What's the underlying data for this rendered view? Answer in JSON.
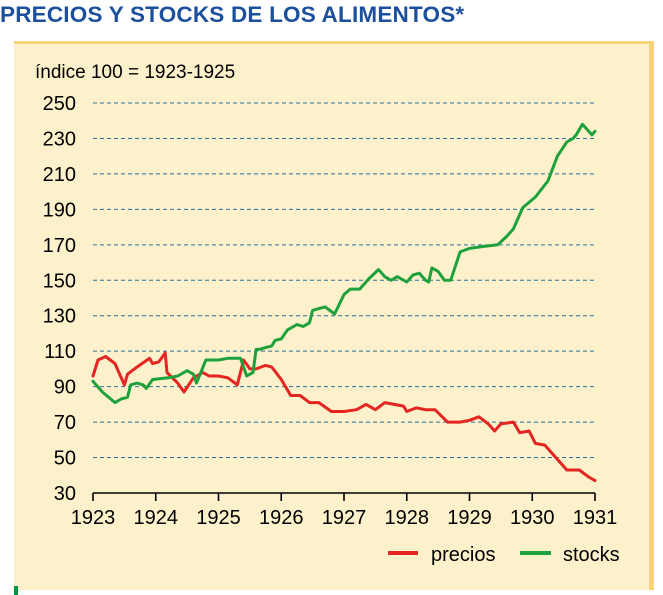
{
  "title": "PRECIOS Y STOCKS DE LOS ALIMENTOS*",
  "colors": {
    "title": "#1c4f9c",
    "panel": "#fdf1cc",
    "border": "#f8d37a",
    "grid": "#2e6f9c",
    "precios": "#e42521",
    "stocks": "#1ea13c"
  },
  "chart_data": {
    "type": "line",
    "subtitle": "índice 100 = 1923-1925",
    "xlim": [
      1923,
      1931
    ],
    "ylim": [
      30,
      250
    ],
    "x_ticks": [
      1923,
      1924,
      1925,
      1926,
      1927,
      1928,
      1929,
      1930,
      1931
    ],
    "y_ticks": [
      30,
      50,
      70,
      90,
      110,
      130,
      150,
      170,
      190,
      210,
      230,
      250
    ],
    "grid": "horizontal dashed",
    "legend_position": "bottom-right",
    "series": [
      {
        "name": "precios",
        "color": "#e42521",
        "x": [
          1923.0,
          1923.08,
          1923.2,
          1923.35,
          1923.5,
          1923.55,
          1923.7,
          1923.9,
          1923.95,
          1924.05,
          1924.15,
          1924.18,
          1924.35,
          1924.45,
          1924.6,
          1924.75,
          1924.85,
          1925.0,
          1925.15,
          1925.3,
          1925.4,
          1925.5,
          1925.6,
          1925.75,
          1925.85,
          1926.0,
          1926.15,
          1926.3,
          1926.45,
          1926.6,
          1926.8,
          1927.0,
          1927.2,
          1927.35,
          1927.5,
          1927.65,
          1927.8,
          1927.95,
          1928.0,
          1928.15,
          1928.3,
          1928.45,
          1928.65,
          1928.85,
          1929.0,
          1929.15,
          1929.3,
          1929.4,
          1929.5,
          1929.7,
          1929.8,
          1929.95,
          1930.05,
          1930.2,
          1930.35,
          1930.55,
          1930.75,
          1930.9,
          1931.0
        ],
        "values": [
          96,
          105,
          107,
          103,
          91,
          97,
          101,
          106,
          103,
          104,
          109,
          98,
          92,
          87,
          95,
          98,
          96,
          96,
          95,
          91,
          105,
          100,
          100,
          102,
          101,
          94,
          85,
          85,
          81,
          81,
          76,
          76,
          77,
          80,
          77,
          81,
          80,
          79,
          76,
          78,
          77,
          77,
          70,
          70,
          71,
          73,
          69,
          65,
          69,
          70,
          64,
          65,
          58,
          57,
          51,
          43,
          43,
          39,
          37
        ]
      },
      {
        "name": "stocks",
        "color": "#1ea13c",
        "x": [
          1923.0,
          1923.15,
          1923.35,
          1923.45,
          1923.55,
          1923.6,
          1923.7,
          1923.8,
          1923.85,
          1923.95,
          1924.2,
          1924.35,
          1924.5,
          1924.6,
          1924.65,
          1924.8,
          1925.0,
          1925.15,
          1925.35,
          1925.45,
          1925.5,
          1925.55,
          1925.6,
          1925.65,
          1925.75,
          1925.85,
          1925.9,
          1926.0,
          1926.1,
          1926.25,
          1926.35,
          1926.45,
          1926.5,
          1926.6,
          1926.7,
          1926.85,
          1927.0,
          1927.1,
          1927.25,
          1927.4,
          1927.55,
          1927.65,
          1927.75,
          1927.85,
          1928.0,
          1928.1,
          1928.2,
          1928.3,
          1928.35,
          1928.4,
          1928.5,
          1928.6,
          1928.7,
          1928.85,
          1929.0,
          1929.2,
          1929.45,
          1929.6,
          1929.7,
          1929.85,
          1930.05,
          1930.25,
          1930.4,
          1930.55,
          1930.65,
          1930.7,
          1930.8,
          1930.85,
          1930.95,
          1931.0
        ],
        "values": [
          93,
          87,
          81,
          83,
          84,
          91,
          92,
          91,
          89,
          94,
          95,
          96,
          99,
          97,
          92,
          105,
          105,
          106,
          106,
          96,
          97,
          98,
          111,
          111,
          112,
          113,
          116,
          117,
          122,
          125,
          124,
          126,
          133,
          134,
          135,
          131,
          142,
          145,
          145,
          151,
          156,
          152,
          150,
          152,
          149,
          153,
          154,
          150,
          149,
          157,
          155,
          150,
          150,
          166,
          168,
          169,
          170,
          175,
          179,
          191,
          197,
          206,
          220,
          228,
          230,
          232,
          238,
          236,
          232,
          234
        ]
      }
    ]
  }
}
